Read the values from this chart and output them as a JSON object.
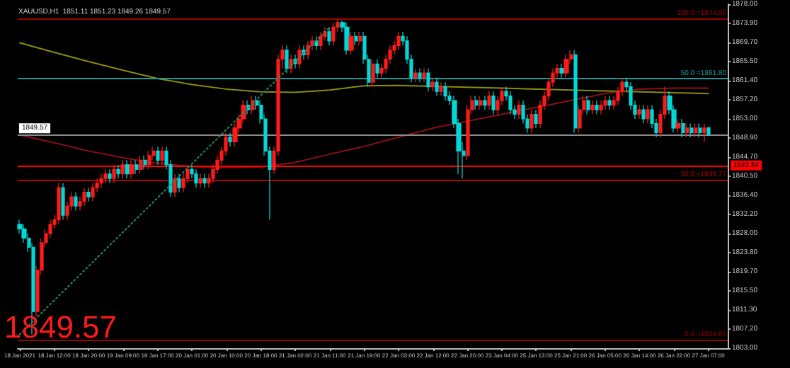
{
  "chart_data": {
    "type": "candlestick",
    "title": "XAUUSD,H1  1851.11 1851.23 1849.26 1849.57",
    "categories": [
      "18 Jan 2021",
      null,
      null,
      null,
      null,
      null,
      null,
      null,
      "18 Jan 12:00",
      null,
      null,
      null,
      null,
      null,
      null,
      null,
      "18 Jan 20:00",
      null,
      null,
      null,
      null,
      null,
      null,
      null,
      "19 Jan 09:00",
      null,
      null,
      null,
      null,
      null,
      null,
      null,
      "19 Jan 17:00",
      null,
      null,
      null,
      null,
      null,
      null,
      null,
      "20 Jan 01:00",
      null,
      null,
      null,
      null,
      null,
      null,
      null,
      "20 Jan 10:00",
      null,
      null,
      null,
      null,
      null,
      null,
      null,
      "20 Jan 18:00",
      null,
      null,
      null,
      null,
      null,
      null,
      null,
      "21 Jan 02:00",
      null,
      null,
      null,
      null,
      null,
      null,
      null,
      "21 Jan 11:00",
      null,
      null,
      null,
      null,
      null,
      null,
      null,
      "21 Jan 19:00",
      null,
      null,
      null,
      null,
      null,
      null,
      null,
      "22 Jan 03:00",
      null,
      null,
      null,
      null,
      null,
      null,
      null,
      "22 Jan 12:00",
      null,
      null,
      null,
      null,
      null,
      null,
      null,
      "22 Jan 20:00",
      null,
      null,
      null,
      null,
      null,
      null,
      null,
      "23 Jan 04:00",
      null,
      null,
      null,
      null,
      null,
      null,
      null,
      "25 Jan 13:00",
      null,
      null,
      null,
      null,
      null,
      null,
      null,
      "25 Jan 21:00",
      null,
      null,
      null,
      null,
      null,
      null,
      null,
      "26 Jan 05:00",
      null,
      null,
      null,
      null,
      null,
      null,
      null,
      "26 Jan 14:00",
      null,
      null,
      null,
      null,
      null,
      null,
      null,
      "26 Jan 22:00",
      null,
      null,
      null,
      null,
      null,
      null,
      null,
      "27 Jan 07:00"
    ],
    "colors": [
      "#ff1a1a",
      "#00d8d8"
    ],
    "series": [
      {
        "type": "line",
        "color": "#8a8a10",
        "x": [
          "18 Jan 2021",
          "18 Jan 12:00",
          "18 Jan 20:00",
          "19 Jan 09:00",
          "19 Jan 17:00",
          "20 Jan 01:00",
          "20 Jan 10:00",
          "20 Jan 18:00",
          "21 Jan 02:00",
          "21 Jan 11:00",
          "21 Jan 19:00",
          "22 Jan 03:00",
          "22 Jan 12:00",
          "22 Jan 20:00",
          "23 Jan 04:00",
          "25 Jan 13:00",
          "25 Jan 21:00",
          "26 Jan 05:00",
          "26 Jan 14:00",
          "26 Jan 22:00",
          "27 Jan 07:00"
        ],
        "values": [
          1869.6,
          1867.5,
          1865.5,
          1863.6,
          1861.8,
          1860.5,
          1859.5,
          1858.9,
          1858.8,
          1859.3,
          1860.2,
          1860.3,
          1860.1,
          1859.9,
          1859.7,
          1859.5,
          1859.3,
          1859.1,
          1858.9,
          1858.7,
          1858.5
        ],
        "line_style": "solid"
      },
      {
        "type": "line",
        "color": "#8b1010",
        "x": [
          "18 Jan 2021",
          "18 Jan 12:00",
          "18 Jan 20:00",
          "19 Jan 09:00",
          "19 Jan 17:00",
          "20 Jan 01:00",
          "20 Jan 10:00",
          "20 Jan 18:00",
          "21 Jan 02:00",
          "21 Jan 11:00",
          "21 Jan 19:00",
          "22 Jan 03:00",
          "22 Jan 12:00",
          "22 Jan 20:00",
          "23 Jan 04:00",
          "25 Jan 13:00",
          "25 Jan 21:00",
          "26 Jan 05:00",
          "26 Jan 14:00",
          "26 Jan 22:00",
          "27 Jan 07:00"
        ],
        "values": [
          1849.5,
          1847.8,
          1846,
          1844.5,
          1843.3,
          1842.6,
          1842.4,
          1842.5,
          1843.5,
          1845.3,
          1847,
          1849,
          1851,
          1852.5,
          1854,
          1855.5,
          1857,
          1858.5,
          1859.5,
          1859.7,
          1859.7
        ],
        "line_style": "solid"
      },
      {
        "type": "line",
        "color": "#1f8f5f",
        "x": [
          "18 Jan 2021",
          "21 Jan 11:00"
        ],
        "values": [
          1806,
          1873
        ],
        "line_style": "dotted"
      },
      {
        "type": "candlestick",
        "ohlc": [
          [
            1830,
            1831,
            1828,
            1829
          ],
          [
            1829,
            1830,
            1826,
            1827
          ],
          [
            1827,
            1828,
            1824,
            1825
          ],
          [
            1825,
            1826,
            1806,
            1811
          ],
          [
            1811,
            1821,
            1810,
            1820
          ],
          [
            1820,
            1827,
            1819,
            1826
          ],
          [
            1826,
            1829,
            1825,
            1828
          ],
          [
            1828,
            1831,
            1827,
            1830
          ],
          [
            1830,
            1832,
            1829,
            1831
          ],
          [
            1831,
            1839,
            1830,
            1838
          ],
          [
            1838,
            1839,
            1831,
            1832
          ],
          [
            1832,
            1835,
            1831,
            1834
          ],
          [
            1834,
            1837,
            1833,
            1836
          ],
          [
            1836,
            1837,
            1833,
            1834
          ],
          [
            1834,
            1836,
            1833,
            1835
          ],
          [
            1835,
            1838,
            1834,
            1837
          ],
          [
            1837,
            1838,
            1835,
            1836
          ],
          [
            1836,
            1839,
            1835,
            1838
          ],
          [
            1838,
            1840,
            1837,
            1839
          ],
          [
            1839,
            1841,
            1838,
            1840
          ],
          [
            1840,
            1842,
            1839,
            1841
          ],
          [
            1841,
            1842,
            1839,
            1840
          ],
          [
            1840,
            1843,
            1839,
            1842
          ],
          [
            1842,
            1843,
            1840,
            1841
          ],
          [
            1841,
            1844,
            1840,
            1843
          ],
          [
            1843,
            1844,
            1840,
            1841
          ],
          [
            1841,
            1844,
            1840,
            1843
          ],
          [
            1843,
            1844,
            1841,
            1842
          ],
          [
            1842,
            1845,
            1841,
            1844
          ],
          [
            1844,
            1845,
            1842,
            1843
          ],
          [
            1843,
            1846,
            1842,
            1845
          ],
          [
            1845,
            1847,
            1844,
            1846
          ],
          [
            1846,
            1847,
            1843,
            1844
          ],
          [
            1844,
            1847,
            1843,
            1846
          ],
          [
            1846,
            1847,
            1842,
            1843
          ],
          [
            1843,
            1844,
            1836,
            1837
          ],
          [
            1837,
            1841,
            1836,
            1840
          ],
          [
            1840,
            1841,
            1837,
            1838
          ],
          [
            1838,
            1841,
            1837,
            1840
          ],
          [
            1840,
            1843,
            1839,
            1842
          ],
          [
            1842,
            1843,
            1840,
            1841
          ],
          [
            1841,
            1842,
            1838,
            1839
          ],
          [
            1839,
            1841,
            1838,
            1840
          ],
          [
            1840,
            1841,
            1838,
            1839
          ],
          [
            1839,
            1841,
            1838,
            1840
          ],
          [
            1840,
            1843,
            1839,
            1842
          ],
          [
            1842,
            1845,
            1841,
            1844
          ],
          [
            1844,
            1847,
            1843,
            1846
          ],
          [
            1846,
            1850,
            1845,
            1849
          ],
          [
            1849,
            1850,
            1847,
            1848
          ],
          [
            1848,
            1852,
            1847,
            1851
          ],
          [
            1851,
            1854,
            1850,
            1853
          ],
          [
            1853,
            1857,
            1852,
            1856
          ],
          [
            1856,
            1857,
            1854,
            1855
          ],
          [
            1855,
            1858,
            1854,
            1857
          ],
          [
            1857,
            1858,
            1855,
            1856
          ],
          [
            1856,
            1857,
            1852,
            1853
          ],
          [
            1853,
            1854,
            1845,
            1846
          ],
          [
            1846,
            1847,
            1831,
            1842
          ],
          [
            1842,
            1847,
            1841,
            1846
          ],
          [
            1846,
            1867,
            1845,
            1866
          ],
          [
            1866,
            1869,
            1864,
            1868
          ],
          [
            1868,
            1869,
            1863,
            1864
          ],
          [
            1864,
            1867,
            1863,
            1866
          ],
          [
            1866,
            1867,
            1864,
            1865
          ],
          [
            1865,
            1869,
            1864,
            1868
          ],
          [
            1868,
            1869,
            1866,
            1867
          ],
          [
            1867,
            1870,
            1866,
            1869
          ],
          [
            1869,
            1871,
            1868,
            1870
          ],
          [
            1870,
            1871,
            1868,
            1869
          ],
          [
            1869,
            1872,
            1868,
            1871
          ],
          [
            1871,
            1873,
            1870,
            1872
          ],
          [
            1872,
            1873,
            1869,
            1870
          ],
          [
            1870,
            1874,
            1869,
            1873
          ],
          [
            1873,
            1874.9,
            1872,
            1874
          ],
          [
            1874,
            1874.5,
            1872,
            1873
          ],
          [
            1873,
            1874,
            1867,
            1868
          ],
          [
            1868,
            1872,
            1867,
            1871
          ],
          [
            1871,
            1872,
            1869,
            1870
          ],
          [
            1870,
            1872,
            1869,
            1871
          ],
          [
            1871,
            1872,
            1865,
            1866
          ],
          [
            1866,
            1867,
            1860,
            1861
          ],
          [
            1861,
            1866,
            1860,
            1865
          ],
          [
            1865,
            1866,
            1862,
            1863
          ],
          [
            1863,
            1865,
            1862,
            1864
          ],
          [
            1864,
            1867,
            1863,
            1866
          ],
          [
            1866,
            1869,
            1865,
            1868
          ],
          [
            1868,
            1870,
            1867,
            1869
          ],
          [
            1869,
            1872,
            1868,
            1871
          ],
          [
            1871,
            1872,
            1869,
            1870
          ],
          [
            1870,
            1871,
            1865,
            1866
          ],
          [
            1866,
            1867,
            1861,
            1862
          ],
          [
            1862,
            1864,
            1861,
            1863
          ],
          [
            1863,
            1864,
            1861,
            1862
          ],
          [
            1862,
            1864,
            1861,
            1863
          ],
          [
            1863,
            1864,
            1859,
            1860
          ],
          [
            1860,
            1862,
            1859,
            1861
          ],
          [
            1861,
            1862,
            1858,
            1859
          ],
          [
            1859,
            1861,
            1858,
            1860
          ],
          [
            1860,
            1861,
            1857,
            1858
          ],
          [
            1858,
            1859,
            1856,
            1857
          ],
          [
            1857,
            1858,
            1851,
            1852
          ],
          [
            1852,
            1853,
            1841,
            1846
          ],
          [
            1846,
            1848,
            1840,
            1845
          ],
          [
            1845,
            1856,
            1844,
            1855
          ],
          [
            1855,
            1858,
            1854,
            1857
          ],
          [
            1857,
            1858,
            1855,
            1856
          ],
          [
            1856,
            1858,
            1855,
            1857
          ],
          [
            1857,
            1858,
            1855,
            1856
          ],
          [
            1856,
            1859,
            1855,
            1858
          ],
          [
            1858,
            1859,
            1854,
            1855
          ],
          [
            1855,
            1858,
            1854,
            1857
          ],
          [
            1857,
            1860,
            1856,
            1859
          ],
          [
            1859,
            1860,
            1857,
            1858
          ],
          [
            1858,
            1859,
            1854,
            1855
          ],
          [
            1855,
            1856,
            1853,
            1854
          ],
          [
            1854,
            1857,
            1853,
            1856
          ],
          [
            1856,
            1857,
            1852,
            1853
          ],
          [
            1853,
            1854,
            1850,
            1851
          ],
          [
            1851,
            1855,
            1850,
            1854
          ],
          [
            1854,
            1855,
            1851,
            1852
          ],
          [
            1852,
            1857,
            1851,
            1856
          ],
          [
            1856,
            1859,
            1855,
            1858
          ],
          [
            1858,
            1862,
            1857,
            1861
          ],
          [
            1861,
            1864,
            1860,
            1863
          ],
          [
            1863,
            1865,
            1862,
            1864
          ],
          [
            1864,
            1865,
            1862,
            1863
          ],
          [
            1863,
            1867,
            1862,
            1866
          ],
          [
            1866,
            1868,
            1865,
            1867
          ],
          [
            1867,
            1868,
            1850,
            1851
          ],
          [
            1851,
            1856,
            1850,
            1855
          ],
          [
            1855,
            1858,
            1854,
            1857
          ],
          [
            1857,
            1858,
            1854,
            1855
          ],
          [
            1855,
            1857,
            1854,
            1856
          ],
          [
            1856,
            1857,
            1854,
            1855
          ],
          [
            1855,
            1857,
            1854,
            1856
          ],
          [
            1856,
            1858,
            1855,
            1857
          ],
          [
            1857,
            1858,
            1855,
            1856
          ],
          [
            1856,
            1858,
            1855,
            1857
          ],
          [
            1857,
            1860,
            1856,
            1859
          ],
          [
            1859,
            1862,
            1858,
            1861
          ],
          [
            1861,
            1862,
            1859,
            1860
          ],
          [
            1860,
            1861,
            1855,
            1856
          ],
          [
            1856,
            1857,
            1853,
            1854
          ],
          [
            1854,
            1856,
            1853,
            1855
          ],
          [
            1855,
            1856,
            1852,
            1853
          ],
          [
            1853,
            1856,
            1852,
            1855
          ],
          [
            1855,
            1856,
            1851,
            1852
          ],
          [
            1852,
            1853,
            1849,
            1850
          ],
          [
            1850,
            1855,
            1849,
            1854
          ],
          [
            1854,
            1860,
            1853,
            1858
          ],
          [
            1858,
            1859,
            1854,
            1855
          ],
          [
            1855,
            1856,
            1850,
            1851
          ],
          [
            1851,
            1853,
            1850,
            1852
          ],
          [
            1852,
            1853,
            1849,
            1850
          ],
          [
            1850,
            1852,
            1849,
            1851
          ],
          [
            1851,
            1852,
            1849,
            1850
          ],
          [
            1850,
            1852,
            1849,
            1851
          ],
          [
            1851,
            1852,
            1849,
            1850
          ],
          [
            1850,
            1852,
            1848,
            1851
          ],
          [
            1851.11,
            1851.23,
            1849.26,
            1849.57
          ]
        ]
      }
    ],
    "ylim": [
      1803,
      1878
    ],
    "yticks": [
      {
        "value": 1803,
        "label": "1803.00"
      },
      {
        "value": 1807.2,
        "label": "1807.20"
      },
      {
        "value": 1811.3,
        "label": "1811.30"
      },
      {
        "value": 1815.5,
        "label": "1815.50"
      },
      {
        "value": 1819.7,
        "label": "1819.70"
      },
      {
        "value": 1823.8,
        "label": "1823.80"
      },
      {
        "value": 1828,
        "label": "1828.00"
      },
      {
        "value": 1832.2,
        "label": "1832.20"
      },
      {
        "value": 1836.4,
        "label": "1836.40"
      },
      {
        "value": 1840.5,
        "label": "1840.50"
      },
      {
        "value": 1844.7,
        "label": "1844.70"
      },
      {
        "value": 1848.9,
        "label": "1848.90"
      },
      {
        "value": 1853,
        "label": "1853.00"
      },
      {
        "value": 1857.2,
        "label": "1857.20"
      },
      {
        "value": 1861.4,
        "label": "1861.40"
      },
      {
        "value": 1865.5,
        "label": "1865.50"
      },
      {
        "value": 1869.7,
        "label": "1869.70"
      },
      {
        "value": 1873.9,
        "label": "1873.90"
      },
      {
        "value": 1878,
        "label": "1878.00"
      }
    ],
    "ref_lines": [
      {
        "axis": "y",
        "value": 1874.9,
        "label": "100.0 =1874.90",
        "color": "#9a0000"
      },
      {
        "axis": "y",
        "value": 1861.8,
        "label": "50.0 =1861.80",
        "color": "#1a9a9a"
      },
      {
        "axis": "y",
        "value": 1849.57,
        "label": "1849.57",
        "color": "#8a8a8a"
      },
      {
        "axis": "y",
        "value": 1842.84,
        "label": "1842.84",
        "color": "#ff0000"
      },
      {
        "axis": "y",
        "value": 1839.77,
        "label": "50.0 =1839.77",
        "color": "#b00000"
      },
      {
        "axis": "y",
        "value": 1804.85,
        "label": "0.0 =1804.85",
        "color": "#9a0000"
      }
    ],
    "annotations": [
      "1849.57"
    ],
    "grid": false,
    "legend": false
  }
}
